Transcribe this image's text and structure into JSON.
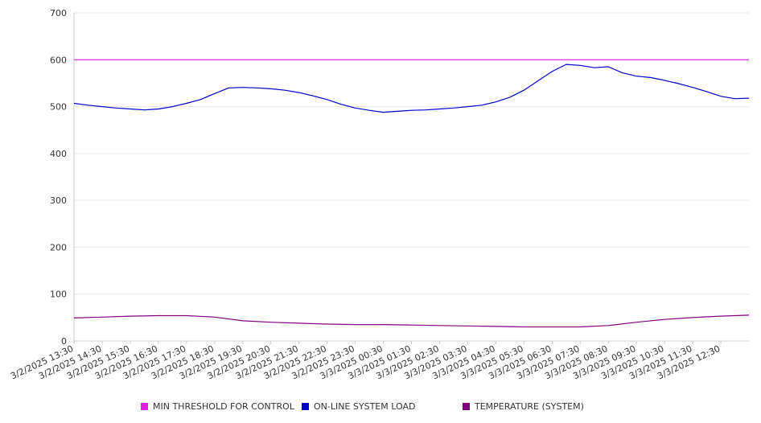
{
  "chart_data": {
    "type": "line",
    "y_ticks": [
      "0",
      "100",
      "200",
      "300",
      "400",
      "500",
      "600",
      "700"
    ],
    "ylim": [
      0,
      700
    ],
    "grid": true,
    "legend_position": "bottom",
    "x_tick_labels": [
      "3/2/2025 13:30",
      "3/2/2025 14:30",
      "3/2/2025 15:30",
      "3/2/2025 16:30",
      "3/2/2025 17:30",
      "3/2/2025 18:30",
      "3/2/2025 19:30",
      "3/2/2025 20:30",
      "3/2/2025 21:30",
      "3/2/2025 22:30",
      "3/2/2025 23:30",
      "3/3/2025 00:30",
      "3/3/2025 01:30",
      "3/3/2025 02:30",
      "3/3/2025 03:30",
      "3/3/2025 04:30",
      "3/3/2025 05:30",
      "3/3/2025 06:30",
      "3/3/2025 07:30",
      "3/3/2025 08:30",
      "3/3/2025 09:30",
      "3/3/2025 10:30",
      "3/3/2025 11:30",
      "3/3/2025 12:30"
    ],
    "series": [
      {
        "name": "MIN THRESHOLD FOR CONTROL",
        "color": "#e020e0",
        "x": [
          "3/2/2025 13:30",
          "3/3/2025 13:30"
        ],
        "values": [
          600,
          600
        ]
      },
      {
        "name": "ON-LINE SYSTEM LOAD",
        "color": "#0000cc",
        "x": [
          "3/2/2025 13:30",
          "3/2/2025 14:00",
          "3/2/2025 14:30",
          "3/2/2025 15:00",
          "3/2/2025 15:30",
          "3/2/2025 16:00",
          "3/2/2025 16:30",
          "3/2/2025 17:00",
          "3/2/2025 17:30",
          "3/2/2025 18:00",
          "3/2/2025 18:30",
          "3/2/2025 19:00",
          "3/2/2025 19:30",
          "3/2/2025 20:00",
          "3/2/2025 20:30",
          "3/2/2025 21:00",
          "3/2/2025 21:30",
          "3/2/2025 22:00",
          "3/2/2025 22:30",
          "3/2/2025 23:00",
          "3/2/2025 23:30",
          "3/3/2025 00:00",
          "3/3/2025 00:30",
          "3/3/2025 01:00",
          "3/3/2025 01:30",
          "3/3/2025 02:00",
          "3/3/2025 02:30",
          "3/3/2025 03:00",
          "3/3/2025 03:30",
          "3/3/2025 04:00",
          "3/3/2025 04:30",
          "3/3/2025 05:00",
          "3/3/2025 05:30",
          "3/3/2025 06:00",
          "3/3/2025 06:30",
          "3/3/2025 07:00",
          "3/3/2025 07:30",
          "3/3/2025 08:00",
          "3/3/2025 08:30",
          "3/3/2025 09:00",
          "3/3/2025 09:30",
          "3/3/2025 10:00",
          "3/3/2025 10:30",
          "3/3/2025 11:00",
          "3/3/2025 11:30",
          "3/3/2025 12:00",
          "3/3/2025 12:30",
          "3/3/2025 13:00",
          "3/3/2025 13:30"
        ],
        "values": [
          507,
          503,
          500,
          497,
          495,
          493,
          495,
          500,
          507,
          515,
          528,
          540,
          541,
          540,
          538,
          535,
          530,
          523,
          515,
          505,
          497,
          492,
          488,
          490,
          492,
          493,
          495,
          497,
          500,
          503,
          510,
          520,
          535,
          555,
          575,
          590,
          588,
          583,
          585,
          572,
          565,
          562,
          556,
          549,
          541,
          532,
          522,
          517,
          518
        ]
      },
      {
        "name": "TEMPERATURE (SYSTEM)",
        "color": "#800080",
        "x": [
          "3/2/2025 13:30",
          "3/2/2025 14:30",
          "3/2/2025 15:30",
          "3/2/2025 16:30",
          "3/2/2025 17:30",
          "3/2/2025 18:30",
          "3/2/2025 19:30",
          "3/2/2025 20:30",
          "3/2/2025 21:30",
          "3/2/2025 22:30",
          "3/2/2025 23:30",
          "3/3/2025 00:30",
          "3/3/2025 01:30",
          "3/3/2025 02:30",
          "3/3/2025 03:30",
          "3/3/2025 04:30",
          "3/3/2025 05:30",
          "3/3/2025 06:30",
          "3/3/2025 07:30",
          "3/3/2025 08:30",
          "3/3/2025 09:30",
          "3/3/2025 10:30",
          "3/3/2025 11:30",
          "3/3/2025 12:30",
          "3/3/2025 13:30"
        ],
        "values": [
          49,
          51,
          53,
          54,
          54,
          51,
          43,
          40,
          38,
          36,
          35,
          35,
          34,
          33,
          32,
          31,
          30,
          30,
          30,
          33,
          40,
          46,
          50,
          53,
          55
        ]
      }
    ]
  }
}
